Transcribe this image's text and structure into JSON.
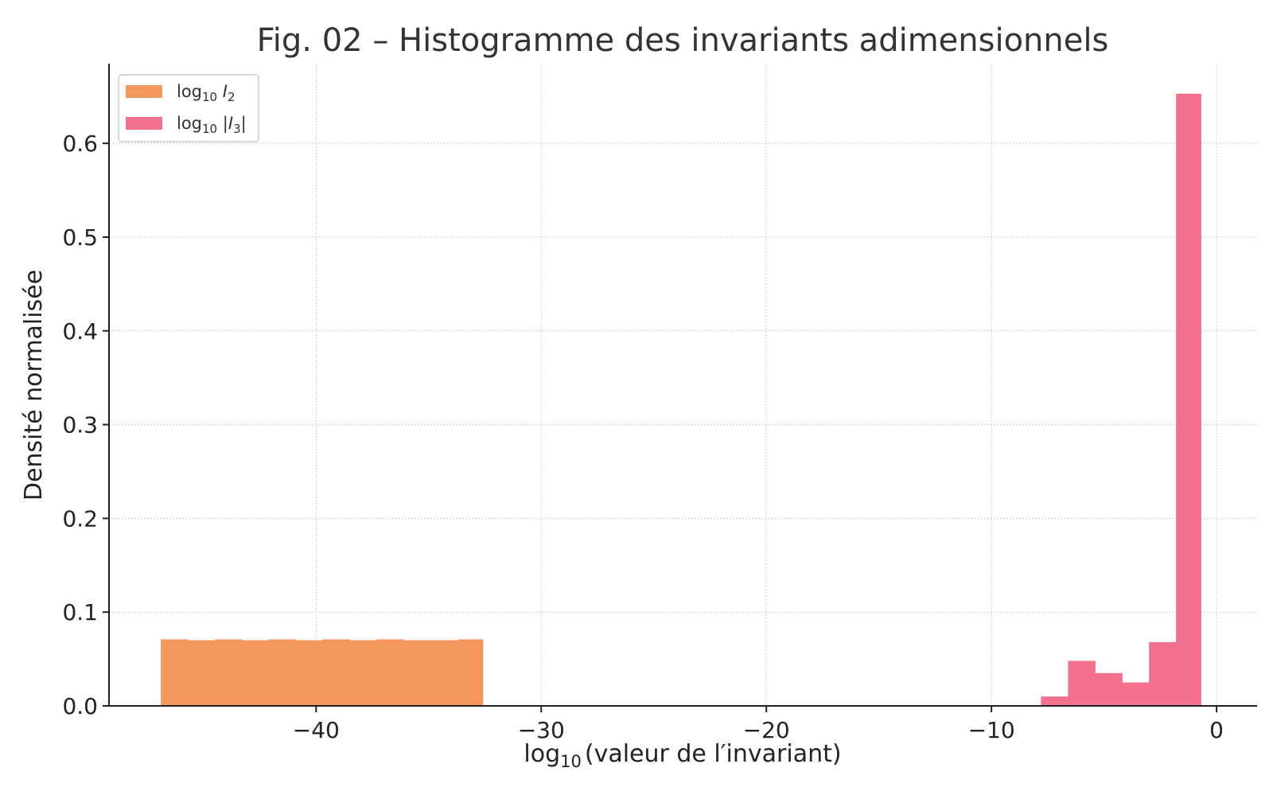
{
  "chart_data": {
    "type": "bar",
    "title": "Fig. 02 – Histogramme des invariants adimensionnels",
    "xlabel": {
      "main": "log",
      "sub": "10",
      "rest": "(valeur de l′invariant)"
    },
    "ylabel": "Densité normalisée",
    "xlim": [
      -49.2,
      1.8
    ],
    "ylim": [
      0,
      0.685
    ],
    "xticks": [
      -40,
      -30,
      -20,
      -10,
      0
    ],
    "xtick_labels": [
      "−40",
      "−30",
      "−20",
      "−10",
      "0"
    ],
    "yticks": [
      0.0,
      0.1,
      0.2,
      0.3,
      0.4,
      0.5,
      0.6
    ],
    "ytick_labels": [
      "0.0",
      "0.1",
      "0.2",
      "0.3",
      "0.4",
      "0.5",
      "0.6"
    ],
    "grid": true,
    "legend_position": "top-left",
    "series": [
      {
        "name": "log10 I2",
        "legend": {
          "pre": "log",
          "sub": "10",
          "var": "I",
          "varsub": "2",
          "open": "",
          "close": ""
        },
        "color": "#f4975f",
        "bins": [
          {
            "x0": -46.9,
            "x1": -45.7,
            "density": 0.071
          },
          {
            "x0": -45.7,
            "x1": -44.5,
            "density": 0.07
          },
          {
            "x0": -44.5,
            "x1": -43.3,
            "density": 0.071
          },
          {
            "x0": -43.3,
            "x1": -42.1,
            "density": 0.07
          },
          {
            "x0": -42.1,
            "x1": -40.9,
            "density": 0.071
          },
          {
            "x0": -40.9,
            "x1": -39.7,
            "density": 0.07
          },
          {
            "x0": -39.7,
            "x1": -38.5,
            "density": 0.071
          },
          {
            "x0": -38.5,
            "x1": -37.3,
            "density": 0.07
          },
          {
            "x0": -37.3,
            "x1": -36.1,
            "density": 0.071
          },
          {
            "x0": -36.1,
            "x1": -34.9,
            "density": 0.07
          },
          {
            "x0": -34.9,
            "x1": -33.7,
            "density": 0.07
          },
          {
            "x0": -33.7,
            "x1": -32.6,
            "density": 0.071
          }
        ]
      },
      {
        "name": "log10 |I3|",
        "legend": {
          "pre": "log",
          "sub": "10",
          "var": "I",
          "varsub": "3",
          "open": "|",
          "close": "|"
        },
        "color": "#f5708c",
        "bins": [
          {
            "x0": -7.8,
            "x1": -6.6,
            "density": 0.01
          },
          {
            "x0": -6.6,
            "x1": -5.4,
            "density": 0.048
          },
          {
            "x0": -5.4,
            "x1": -4.2,
            "density": 0.035
          },
          {
            "x0": -4.2,
            "x1": -3.0,
            "density": 0.025
          },
          {
            "x0": -3.0,
            "x1": -1.8,
            "density": 0.068
          },
          {
            "x0": -1.8,
            "x1": -0.7,
            "density": 0.653
          }
        ]
      }
    ]
  }
}
